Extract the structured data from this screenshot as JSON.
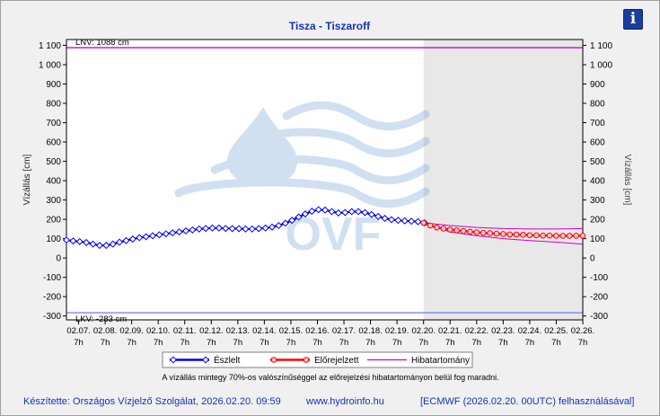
{
  "chart_data": {
    "type": "line",
    "title": "Tisza - Tiszaroff",
    "ylabel_left": "Vízállás [cm]",
    "ylabel_right": "Vízállás [cm]",
    "ylim": [
      -320,
      1130
    ],
    "yticks": [
      {
        "v": 1100,
        "label": "1 100"
      },
      {
        "v": 1000,
        "label": "1 000"
      },
      {
        "v": 900,
        "label": "900"
      },
      {
        "v": 800,
        "label": "800"
      },
      {
        "v": 700,
        "label": "700"
      },
      {
        "v": 600,
        "label": "600"
      },
      {
        "v": 500,
        "label": "500"
      },
      {
        "v": 400,
        "label": "400"
      },
      {
        "v": 300,
        "label": "300"
      },
      {
        "v": 200,
        "label": "200"
      },
      {
        "v": 100,
        "label": "100"
      },
      {
        "v": 0,
        "label": "0"
      },
      {
        "v": -100,
        "label": "-100"
      },
      {
        "v": -200,
        "label": "-200"
      },
      {
        "v": -300,
        "label": "-300"
      }
    ],
    "x_start": "02.06. 20h",
    "x_end": "02.26. 7h",
    "xticks": [
      {
        "date": "02.07.",
        "time": "7h"
      },
      {
        "date": "02.08.",
        "time": "7h"
      },
      {
        "date": "02.09.",
        "time": "7h"
      },
      {
        "date": "02.10.",
        "time": "7h"
      },
      {
        "date": "02.11.",
        "time": "7h"
      },
      {
        "date": "02.12.",
        "time": "7h"
      },
      {
        "date": "02.13.",
        "time": "7h"
      },
      {
        "date": "02.14.",
        "time": "7h"
      },
      {
        "date": "02.15.",
        "time": "7h"
      },
      {
        "date": "02.16.",
        "time": "7h"
      },
      {
        "date": "02.17.",
        "time": "7h"
      },
      {
        "date": "02.18.",
        "time": "7h"
      },
      {
        "date": "02.19.",
        "time": "7h"
      },
      {
        "date": "02.20.",
        "time": "7h"
      },
      {
        "date": "02.21.",
        "time": "7h"
      },
      {
        "date": "02.22.",
        "time": "7h"
      },
      {
        "date": "02.23.",
        "time": "7h"
      },
      {
        "date": "02.24.",
        "time": "7h"
      },
      {
        "date": "02.25.",
        "time": "7h"
      },
      {
        "date": "02.26.",
        "time": "7h"
      }
    ],
    "forecast_region_start": "02.20. 7h",
    "reference_lines": [
      {
        "name": "LNV",
        "label": "LNV: 1088 cm",
        "value": 1088,
        "color": "#cc00cc"
      },
      {
        "name": "LKV",
        "label": "LKV: -283 cm",
        "value": -283,
        "color": "#8080ff"
      }
    ],
    "series": [
      {
        "name": "Észlelt",
        "color": "#0000ff",
        "points": [
          [
            "02.06. 20h",
            93
          ],
          [
            "02.07. 2h",
            88
          ],
          [
            "02.07. 8h",
            85
          ],
          [
            "02.07. 14h",
            80
          ],
          [
            "02.07. 20h",
            72
          ],
          [
            "02.08. 2h",
            65
          ],
          [
            "02.08. 8h",
            65
          ],
          [
            "02.08. 14h",
            72
          ],
          [
            "02.08. 20h",
            82
          ],
          [
            "02.09. 2h",
            90
          ],
          [
            "02.09. 8h",
            98
          ],
          [
            "02.09. 14h",
            105
          ],
          [
            "02.09. 20h",
            110
          ],
          [
            "02.10. 2h",
            115
          ],
          [
            "02.10. 8h",
            120
          ],
          [
            "02.10. 14h",
            125
          ],
          [
            "02.10. 20h",
            130
          ],
          [
            "02.11. 2h",
            135
          ],
          [
            "02.11. 8h",
            140
          ],
          [
            "02.11. 14h",
            145
          ],
          [
            "02.11. 20h",
            150
          ],
          [
            "02.12. 2h",
            153
          ],
          [
            "02.12. 8h",
            155
          ],
          [
            "02.12. 14h",
            155
          ],
          [
            "02.12. 20h",
            153
          ],
          [
            "02.13. 2h",
            152
          ],
          [
            "02.13. 8h",
            152
          ],
          [
            "02.13. 14h",
            150
          ],
          [
            "02.13. 20h",
            150
          ],
          [
            "02.14. 2h",
            152
          ],
          [
            "02.14. 8h",
            155
          ],
          [
            "02.14. 14h",
            160
          ],
          [
            "02.14. 20h",
            168
          ],
          [
            "02.15. 2h",
            180
          ],
          [
            "02.15. 8h",
            195
          ],
          [
            "02.15. 14h",
            212
          ],
          [
            "02.15. 20h",
            228
          ],
          [
            "02.16. 2h",
            242
          ],
          [
            "02.16. 8h",
            250
          ],
          [
            "02.16. 14h",
            248
          ],
          [
            "02.16. 20h",
            240
          ],
          [
            "02.17. 2h",
            233
          ],
          [
            "02.17. 8h",
            235
          ],
          [
            "02.17. 14h",
            240
          ],
          [
            "02.17. 20h",
            240
          ],
          [
            "02.18. 2h",
            235
          ],
          [
            "02.18. 8h",
            225
          ],
          [
            "02.18. 14h",
            215
          ],
          [
            "02.18. 20h",
            205
          ],
          [
            "02.19. 2h",
            198
          ],
          [
            "02.19. 8h",
            195
          ],
          [
            "02.19. 14h",
            192
          ],
          [
            "02.19. 20h",
            190
          ],
          [
            "02.20. 2h",
            188
          ],
          [
            "02.20. 8h",
            182
          ]
        ]
      },
      {
        "name": "Előrejelzett",
        "color": "#ff0000",
        "points": [
          [
            "02.20. 7h",
            182
          ],
          [
            "02.20. 13h",
            168
          ],
          [
            "02.20. 19h",
            158
          ],
          [
            "02.21. 1h",
            152
          ],
          [
            "02.21. 7h",
            147
          ],
          [
            "02.21. 13h",
            143
          ],
          [
            "02.21. 19h",
            139
          ],
          [
            "02.22. 1h",
            136
          ],
          [
            "02.22. 7h",
            133
          ],
          [
            "02.22. 13h",
            130
          ],
          [
            "02.22. 19h",
            128
          ],
          [
            "02.23. 1h",
            126
          ],
          [
            "02.23. 7h",
            124
          ],
          [
            "02.23. 13h",
            122
          ],
          [
            "02.23. 19h",
            121
          ],
          [
            "02.24. 1h",
            120
          ],
          [
            "02.24. 7h",
            118
          ],
          [
            "02.24. 13h",
            117
          ],
          [
            "02.24. 19h",
            116
          ],
          [
            "02.25. 1h",
            116
          ],
          [
            "02.25. 7h",
            115
          ],
          [
            "02.25. 13h",
            115
          ],
          [
            "02.25. 19h",
            115
          ],
          [
            "02.26. 1h",
            115
          ],
          [
            "02.26. 7h",
            115
          ]
        ]
      },
      {
        "name": "Hibatartomány",
        "color": "#cc00cc",
        "upper": [
          [
            "02.20. 7h",
            182
          ],
          [
            "02.21. 7h",
            168
          ],
          [
            "02.22. 7h",
            158
          ],
          [
            "02.23. 7h",
            152
          ],
          [
            "02.24. 7h",
            150
          ],
          [
            "02.25. 7h",
            150
          ],
          [
            "02.26. 7h",
            152
          ]
        ],
        "lower": [
          [
            "02.20. 7h",
            182
          ],
          [
            "02.21. 7h",
            135
          ],
          [
            "02.22. 7h",
            115
          ],
          [
            "02.23. 7h",
            100
          ],
          [
            "02.24. 7h",
            90
          ],
          [
            "02.25. 7h",
            82
          ],
          [
            "02.26. 7h",
            72
          ]
        ]
      }
    ],
    "legend": [
      {
        "name": "Észlelt",
        "color": "#0000ff",
        "marker": "diamond"
      },
      {
        "name": "Előrejelzett",
        "color": "#ff0000",
        "marker": "circle"
      },
      {
        "name": "Hibatartomány",
        "color": "#cc00cc",
        "marker": "none"
      }
    ],
    "legend_placement": "bottom",
    "grid": false,
    "note": "A vízállás mintegy 70%-os valószínűséggel az előrejelzési hibatartományon belül fog maradni."
  },
  "watermark": "OVF",
  "info_label": "i",
  "footer": {
    "author": "Készítette: Országos Vízjelző Szolgálat, 2026.02.20. 09:59",
    "website": "www.hydroinfo.hu",
    "source": "[ECMWF (2026.02.20. 00UTC) felhasználásával]"
  }
}
